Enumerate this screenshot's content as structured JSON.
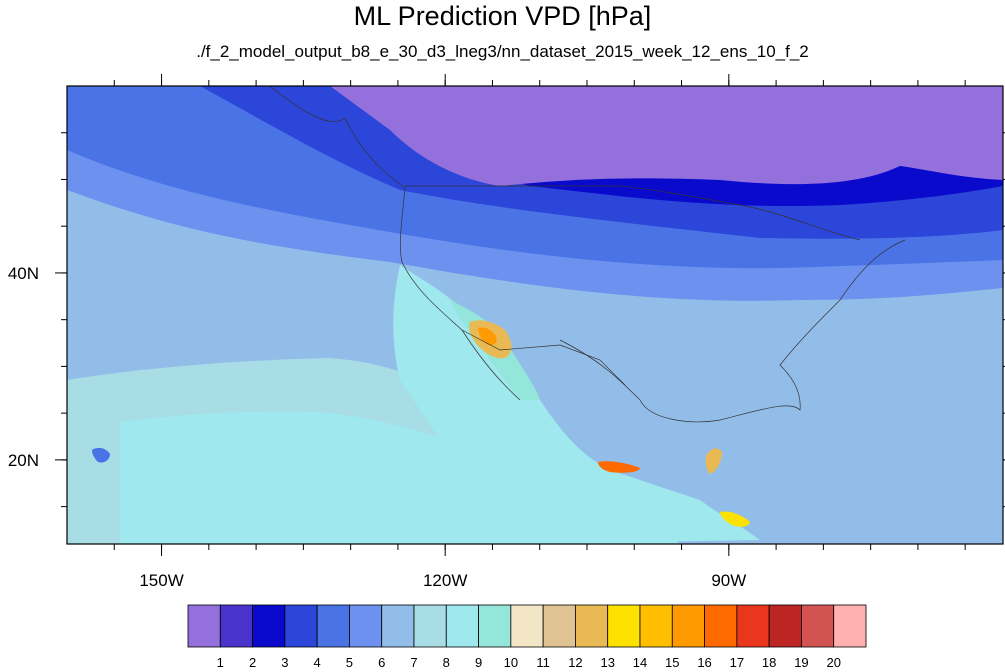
{
  "title": "ML Prediction VPD [hPa]",
  "subtitle": "./f_2_model_output_b8_e_30_d3_lneg3/nn_dataset_2015_week_12_ens_10_f_2",
  "map": {
    "projection": "cylindrical equidistant",
    "lon_range": [
      -160,
      -61
    ],
    "lat_range": [
      11,
      60
    ],
    "lon_ticks": [
      {
        "value": -150,
        "label": "150W"
      },
      {
        "value": -120,
        "label": "120W"
      },
      {
        "value": -90,
        "label": "90W"
      }
    ],
    "lat_ticks": [
      {
        "value": 40,
        "label": "40N"
      },
      {
        "value": 20,
        "label": "20N"
      }
    ],
    "field": "VPD",
    "units": "hPa"
  },
  "colorbar": {
    "levels": [
      "1",
      "2",
      "3",
      "4",
      "5",
      "6",
      "7",
      "8",
      "9",
      "10",
      "11",
      "12",
      "13",
      "14",
      "15",
      "16",
      "17",
      "18",
      "19",
      "20"
    ],
    "colors": [
      "#9370db",
      "#4a32cc",
      "#0a0acc",
      "#2b46d9",
      "#4a74e6",
      "#6c91ee",
      "#93bde9",
      "#a8dde6",
      "#9ee8ee",
      "#93e6d9",
      "#f3e6c6",
      "#e0c392",
      "#e9b954",
      "#fde100",
      "#ffbe00",
      "#ff9a00",
      "#ff6a00",
      "#e9361c",
      "#bd2424",
      "#d35353",
      "#ffb0b0"
    ]
  }
}
